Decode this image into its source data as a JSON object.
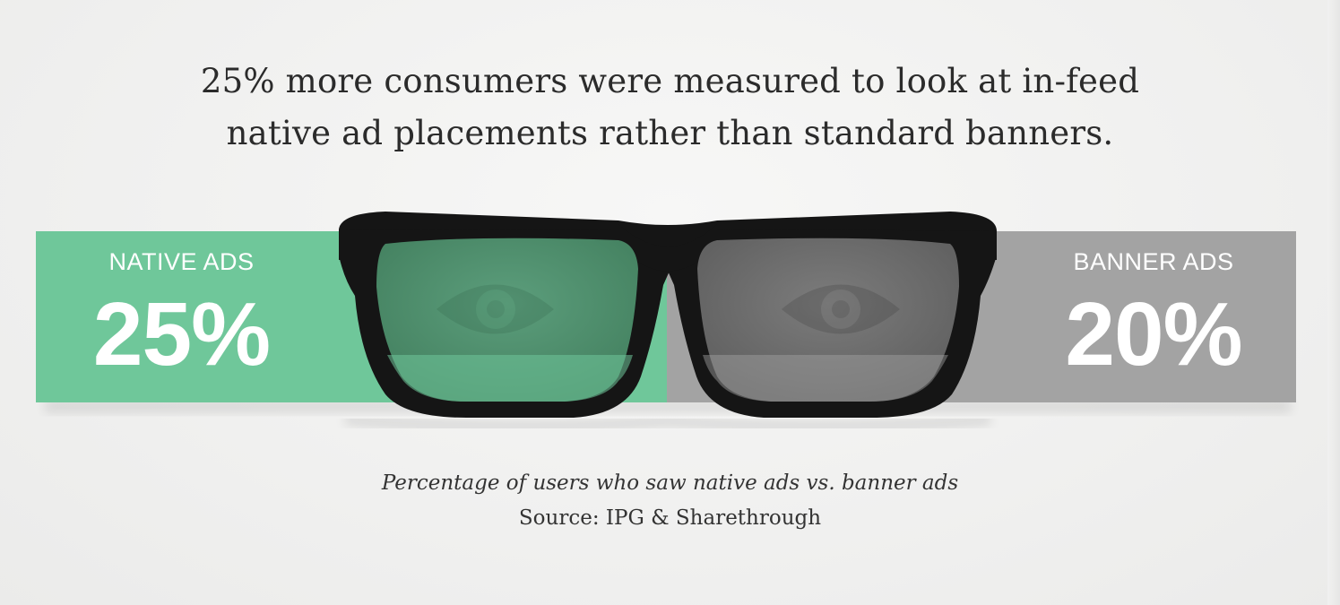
{
  "headline": {
    "line1": "25% more consumers were measured to look at in-feed",
    "line2": "native ad placements rather than standard banners."
  },
  "caption": {
    "description": "Percentage of users who saw native ads vs. banner ads",
    "source": "Source: IPG & Sharethrough"
  },
  "colors": {
    "native": "#6fc79a",
    "banner": "#a3a3a3",
    "frame": "#151515",
    "lens_native": "#4f8f6f",
    "lens_banner": "#6e6e6e",
    "text": "#ffffff"
  },
  "icons": [
    "eyeglasses-icon",
    "eye-icon"
  ],
  "chart_data": {
    "type": "bar",
    "title": "25% more consumers were measured to look at in-feed native ad placements rather than standard banners.",
    "series": [
      {
        "name": "NATIVE ADS",
        "value": 25,
        "display": "25%"
      },
      {
        "name": "BANNER ADS",
        "value": 20,
        "display": "20%"
      }
    ],
    "unit": "%",
    "grid": false,
    "legend": "none"
  }
}
